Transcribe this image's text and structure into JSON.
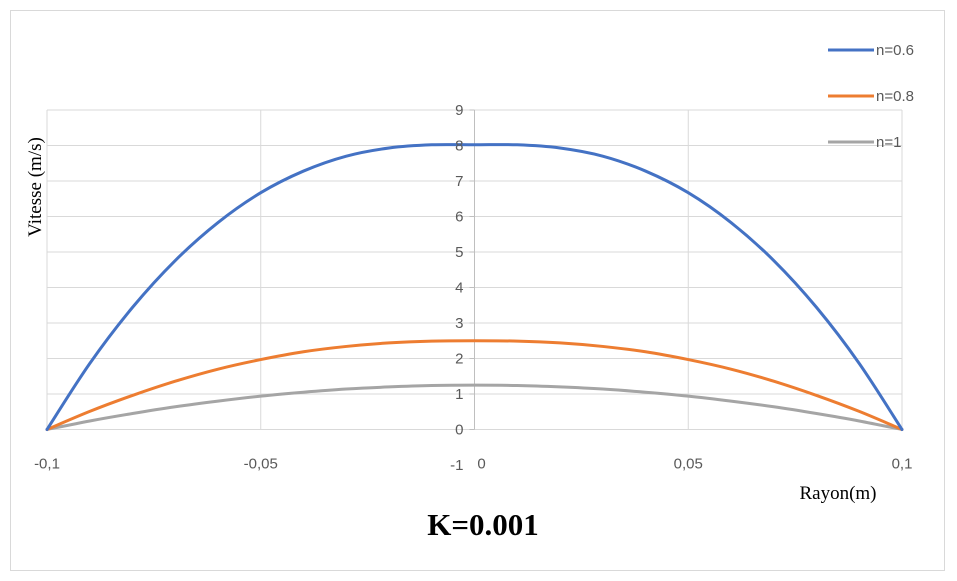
{
  "chart_data": {
    "type": "line",
    "xlabel": "Rayon(m)",
    "ylabel": "Vitesse (m/s)",
    "annotation": "K=0.001",
    "xlim": [
      -0.1,
      0.1
    ],
    "ylim": [
      -1,
      9
    ],
    "x_ticks": [
      "-0,1",
      "-0,05",
      "0",
      "0,05",
      "0,1"
    ],
    "y_ticks": [
      "-1",
      "0",
      "1",
      "2",
      "3",
      "4",
      "5",
      "6",
      "7",
      "8",
      "9"
    ],
    "grid": true,
    "legend_position": "top-right",
    "x": [
      -0.1,
      -0.09,
      -0.08,
      -0.07,
      -0.06,
      -0.05,
      -0.04,
      -0.03,
      -0.02,
      -0.01,
      0,
      0.01,
      0.02,
      0.03,
      0.04,
      0.05,
      0.06,
      0.07,
      0.08,
      0.09,
      0.1
    ],
    "series": [
      {
        "name": "n=0.6",
        "color": "#4472C4",
        "values": [
          0,
          1.86,
          3.44,
          4.76,
          5.83,
          6.67,
          7.28,
          7.7,
          7.93,
          8.02,
          8.02,
          8.02,
          7.93,
          7.7,
          7.28,
          6.67,
          5.83,
          4.76,
          3.44,
          1.86,
          0
        ]
      },
      {
        "name": "n=0.8",
        "color": "#ED7D31",
        "values": [
          0,
          0.51,
          0.96,
          1.36,
          1.7,
          1.97,
          2.19,
          2.34,
          2.44,
          2.49,
          2.5,
          2.49,
          2.44,
          2.34,
          2.19,
          1.97,
          1.7,
          1.36,
          0.96,
          0.51,
          0
        ]
      },
      {
        "name": "n=1",
        "color": "#A5A5A5",
        "values": [
          0,
          0.24,
          0.45,
          0.64,
          0.8,
          0.94,
          1.05,
          1.14,
          1.2,
          1.24,
          1.25,
          1.24,
          1.2,
          1.14,
          1.05,
          0.94,
          0.8,
          0.64,
          0.45,
          0.24,
          0
        ]
      }
    ]
  }
}
